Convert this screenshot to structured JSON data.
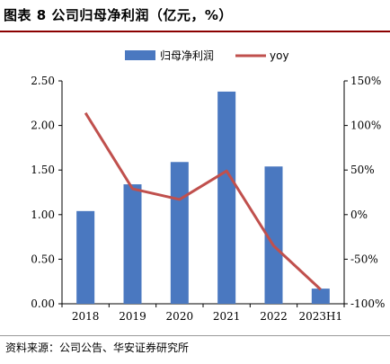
{
  "header": {
    "title": "图表 8 公司归母净利润（亿元，%）"
  },
  "source": "资料来源：公司公告、华安证券研究所",
  "chart_data": {
    "type": "bar",
    "categories": [
      "2018",
      "2019",
      "2020",
      "2021",
      "2022",
      "2023H1"
    ],
    "series": [
      {
        "name": "归母净利润",
        "type": "bar",
        "axis": "left",
        "values": [
          1.04,
          1.34,
          1.59,
          2.38,
          1.54,
          0.17
        ],
        "color": "#4a78c0"
      },
      {
        "name": "yoy",
        "type": "line",
        "axis": "right",
        "values": [
          114,
          29,
          17,
          49,
          -35,
          -84
        ],
        "color": "#c0504d"
      }
    ],
    "y_left": {
      "ylim": [
        0,
        2.5
      ],
      "ticks": [
        "0.00",
        "0.50",
        "1.00",
        "1.50",
        "2.00",
        "2.50"
      ]
    },
    "y_right": {
      "ylim": [
        -100,
        150
      ],
      "ticks": [
        "-100%",
        "-50%",
        "0%",
        "50%",
        "100%",
        "150%"
      ]
    },
    "legend_position": "top"
  }
}
